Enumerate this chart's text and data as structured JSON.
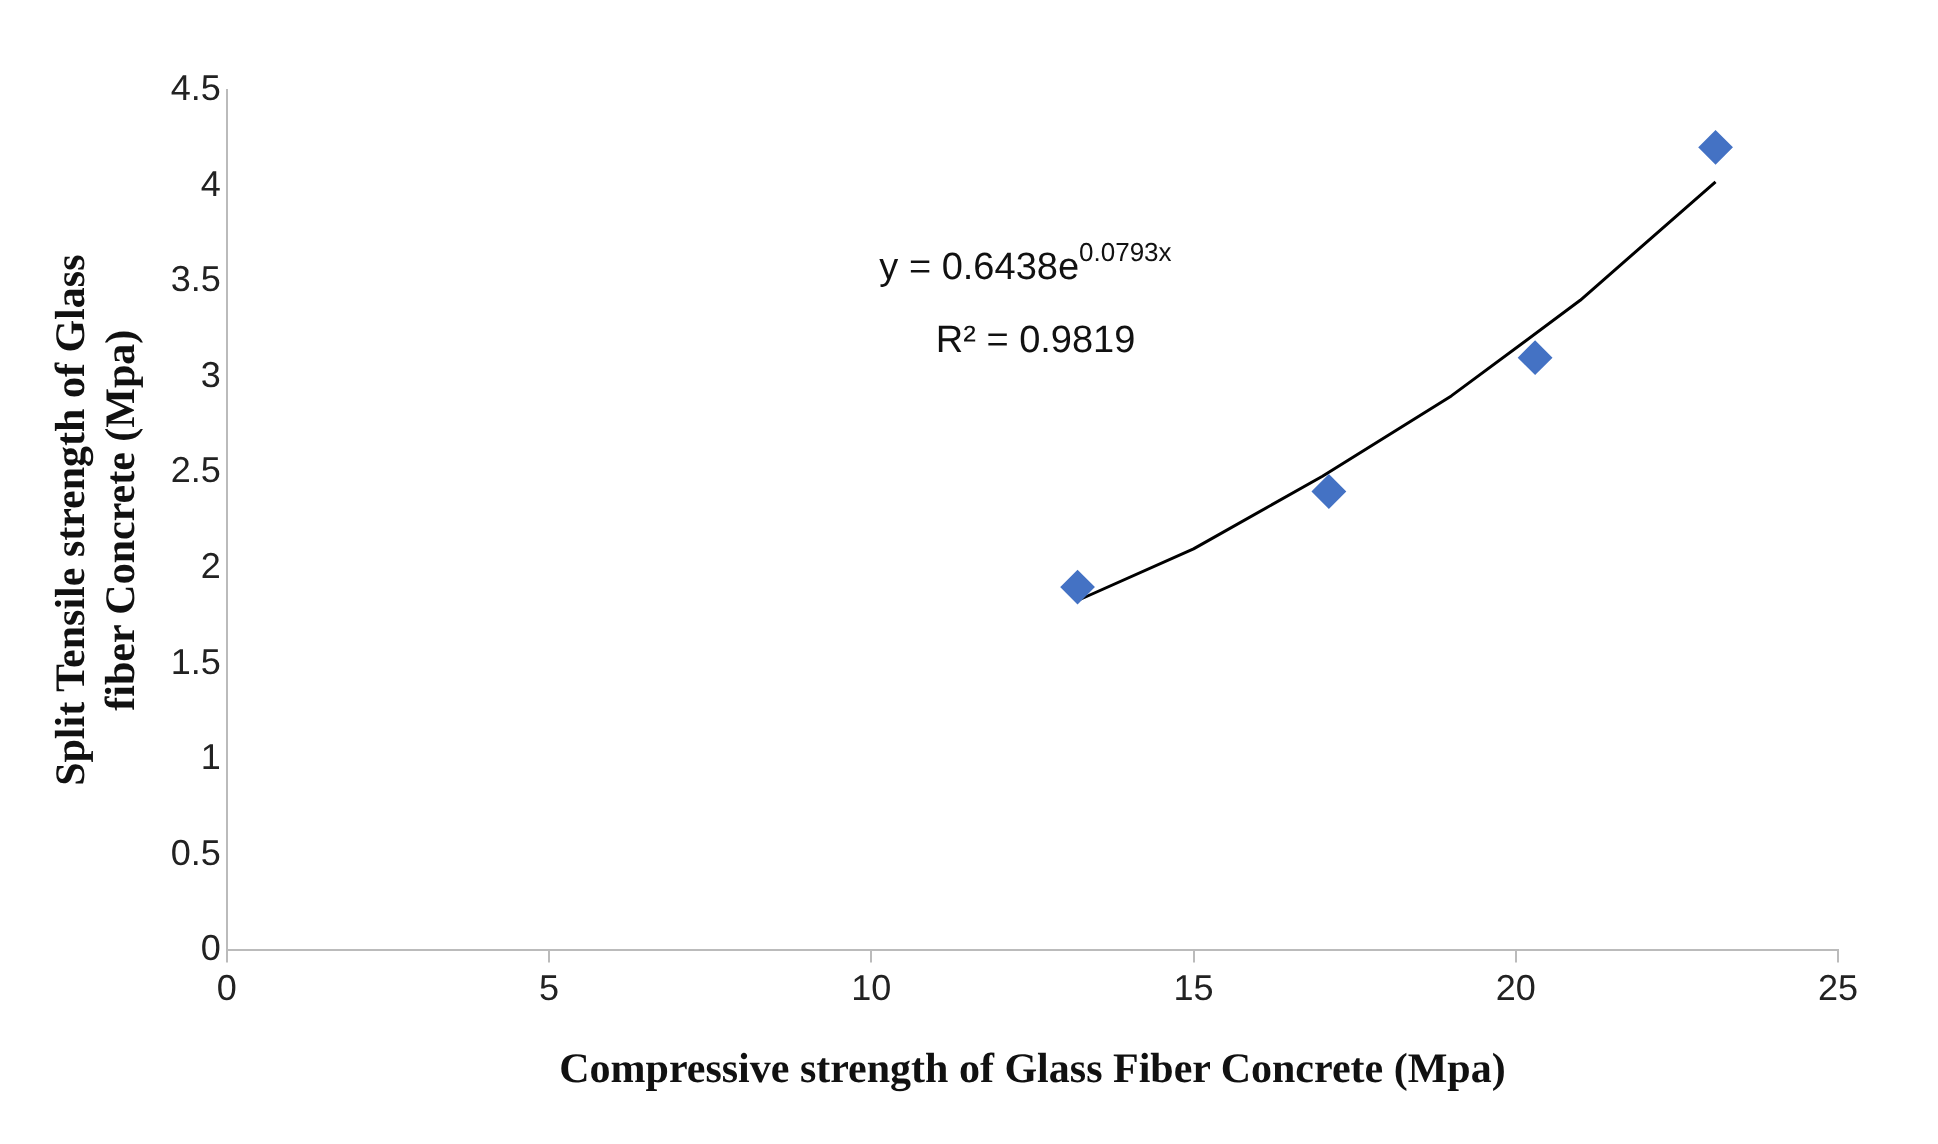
{
  "chart_data": {
    "type": "scatter",
    "xlabel": "Compressive strength of Glass Fiber Concrete (Mpa)",
    "ylabel": "Split Tensile strength of Glass fiber Concrete (Mpa)",
    "xlim": [
      0,
      25
    ],
    "xticks": [
      0,
      5,
      10,
      15,
      20,
      25
    ],
    "ylim": [
      0,
      4.5
    ],
    "yticks": [
      0,
      0.5,
      1,
      1.5,
      2,
      2.5,
      3,
      3.5,
      4,
      4.5
    ],
    "grid": false,
    "legend": false,
    "marker": "diamond",
    "series": [
      {
        "x": [
          13.2,
          17.1,
          20.3,
          23.1
        ],
        "values": [
          1.9,
          2.4,
          3.1,
          4.2
        ],
        "color": "#4472c4"
      },
      {
        "type": "line",
        "x": [
          13.2,
          15,
          17,
          19,
          21,
          23.1
        ],
        "values": [
          1.83,
          2.1,
          2.48,
          2.9,
          3.4,
          4.02
        ],
        "color": "#000000",
        "marker": "none",
        "line_style": "solid"
      }
    ],
    "annotations": [
      "y = 0.6438e$^{0.0793x}$",
      "R² = 0.9819"
    ]
  }
}
